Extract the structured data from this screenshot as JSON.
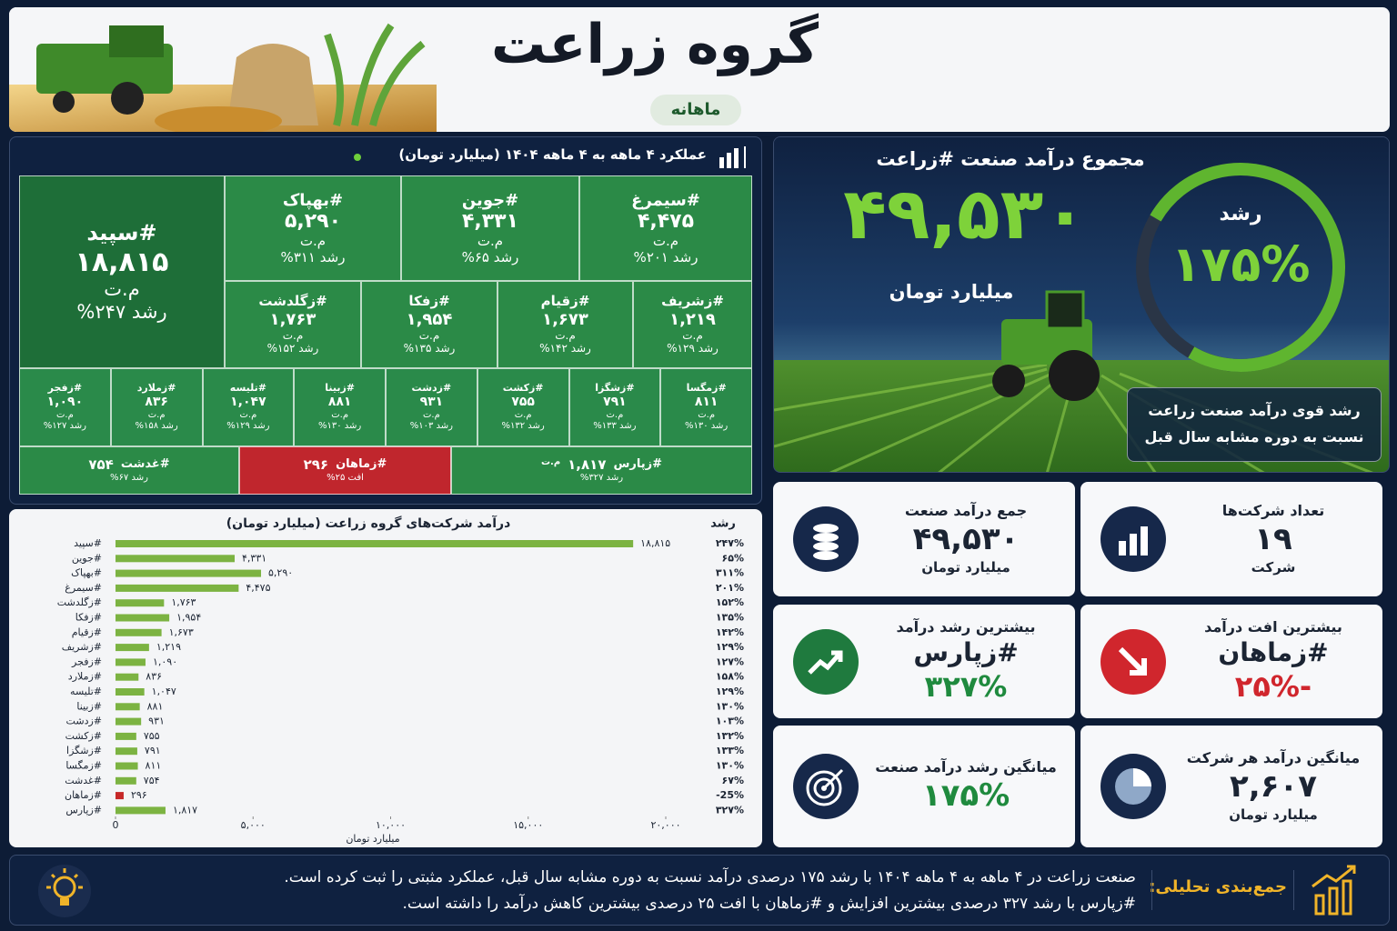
{
  "header": {
    "title": "گروه زراعت",
    "badge": "ماهانه"
  },
  "treemap": {
    "title": "عملکرد ۴ ماهه به ۴ ماهه ۱۴۰۴ (میلیارد تومان)",
    "tiles": [
      {
        "name": "#سپید",
        "value": "۱۸,۸۱۵",
        "unit": "م.ت",
        "growth": "رشد ۲۴۷%"
      },
      {
        "name": "#سیمرغ",
        "value": "۴,۴۷۵",
        "unit": "م.ت",
        "growth": "رشد ۲۰۱%"
      },
      {
        "name": "#جوین",
        "value": "۴,۳۳۱",
        "unit": "م.ت",
        "growth": "رشد ۶۵%"
      },
      {
        "name": "#بهپاک",
        "value": "۵,۲۹۰",
        "unit": "م.ت",
        "growth": "رشد ۳۱۱%"
      },
      {
        "name": "#زشریف",
        "value": "۱,۲۱۹",
        "unit": "م.ت",
        "growth": "رشد ۱۲۹%"
      },
      {
        "name": "#زقیام",
        "value": "۱,۶۷۳",
        "unit": "م.ت",
        "growth": "رشد ۱۴۲%"
      },
      {
        "name": "#زفکا",
        "value": "۱,۹۵۴",
        "unit": "م.ت",
        "growth": "رشد ۱۳۵%"
      },
      {
        "name": "#زگلدشت",
        "value": "۱,۷۶۳",
        "unit": "م.ت",
        "growth": "رشد ۱۵۲%"
      },
      {
        "name": "#زمگسا",
        "value": "۸۱۱",
        "unit": "م.ت",
        "growth": "رشد ۱۳۰%"
      },
      {
        "name": "#زشگزا",
        "value": "۷۹۱",
        "unit": "م.ت",
        "growth": "رشد ۱۳۳%"
      },
      {
        "name": "#زکشت",
        "value": "۷۵۵",
        "unit": "م.ت",
        "growth": "رشد ۱۳۲%"
      },
      {
        "name": "#زدشت",
        "value": "۹۳۱",
        "unit": "م.ت",
        "growth": "رشد ۱۰۳%"
      },
      {
        "name": "#زبینا",
        "value": "۸۸۱",
        "unit": "م.ت",
        "growth": "رشد ۱۳۰%"
      },
      {
        "name": "#تلیسه",
        "value": "۱,۰۴۷",
        "unit": "م.ت",
        "growth": "رشد ۱۲۹%"
      },
      {
        "name": "#زملارد",
        "value": "۸۳۶",
        "unit": "م.ت",
        "growth": "رشد ۱۵۸%"
      },
      {
        "name": "#زفجر",
        "value": "۱,۰۹۰",
        "unit": "م.ت",
        "growth": "رشد ۱۲۷%"
      },
      {
        "name": "#زپارس",
        "value": "۱,۸۱۷",
        "unit": "م.ت",
        "growth": "رشد ۳۲۷%"
      },
      {
        "name": "#زماهان",
        "value": "۲۹۶",
        "growth": "افت ۲۵%"
      },
      {
        "name": "#غدشت",
        "value": "۷۵۴",
        "growth": "رشد ۶۷%"
      }
    ]
  },
  "hero": {
    "title": "مجموع درآمد صنعت #زراعت",
    "value": "۴۹,۵۳۰",
    "unit": "میلیارد تومان",
    "ring_label": "رشد",
    "ring_value": "۱۷۵%",
    "caption": [
      "رشد قوی درآمد صنعت زراعت",
      "نسبت به دوره مشابه سال قبل"
    ]
  },
  "kpis": [
    {
      "title": "تعداد شرکت‌ها",
      "value": "۱۹",
      "unit": "شرکت"
    },
    {
      "title": "جمع درآمد صنعت",
      "value": "۴۹,۵۳۰",
      "unit": "میلیارد تومان"
    },
    {
      "title": "بیشترین افت درآمد",
      "value": "#زماهان",
      "unit": "-۲۵%"
    },
    {
      "title": "بیشترین رشد درآمد",
      "value": "#زپارس",
      "unit": "۳۲۷%"
    },
    {
      "title": "میانگین درآمد هر شرکت",
      "value": "۲,۶۰۷",
      "unit": "میلیارد تومان"
    },
    {
      "title": "میانگین رشد درآمد صنعت",
      "value": "۱۷۵%"
    }
  ],
  "chart_data": {
    "type": "bar",
    "orientation": "horizontal",
    "title": "درآمد شرکت‌های گروه زراعت (میلیارد تومان)",
    "xlabel": "میلیارد تومان",
    "growth_header": "رشد",
    "categories": [
      "#سپید",
      "#جوین",
      "#بهپاک",
      "#سیمرغ",
      "#زگلدشت",
      "#زفکا",
      "#زقیام",
      "#زشریف",
      "#زفجر",
      "#زملارد",
      "#تلیسه",
      "#زبینا",
      "#زدشت",
      "#زکشت",
      "#زشگزا",
      "#زمگسا",
      "#غدشت",
      "#زماهان",
      "#زپارس"
    ],
    "values": [
      18815,
      4331,
      5290,
      4475,
      1763,
      1954,
      1673,
      1219,
      1090,
      836,
      1047,
      881,
      931,
      755,
      791,
      811,
      754,
      296,
      1817
    ],
    "value_labels": [
      "۱۸,۸۱۵",
      "۴,۳۳۱",
      "۵,۲۹۰",
      "۴,۴۷۵",
      "۱,۷۶۳",
      "۱,۹۵۴",
      "۱,۶۷۳",
      "۱,۲۱۹",
      "۱,۰۹۰",
      "۸۳۶",
      "۱,۰۴۷",
      "۸۸۱",
      "۹۳۱",
      "۷۵۵",
      "۷۹۱",
      "۸۱۱",
      "۷۵۴",
      "۲۹۶",
      "۱,۸۱۷"
    ],
    "growth_labels": [
      "۲۴۷%",
      "۶۵%",
      "۳۱۱%",
      "۲۰۱%",
      "۱۵۲%",
      "۱۳۵%",
      "۱۴۲%",
      "۱۲۹%",
      "۱۲۷%",
      "۱۵۸%",
      "۱۲۹%",
      "۱۳۰%",
      "۱۰۳%",
      "۱۳۲%",
      "۱۳۳%",
      "۱۳۰%",
      "۶۷%",
      "-25%",
      "۳۲۷%"
    ],
    "colors": [
      "#7cb342",
      "#7cb342",
      "#7cb342",
      "#7cb342",
      "#7cb342",
      "#7cb342",
      "#7cb342",
      "#7cb342",
      "#7cb342",
      "#7cb342",
      "#7cb342",
      "#7cb342",
      "#7cb342",
      "#7cb342",
      "#7cb342",
      "#7cb342",
      "#7cb342",
      "#c62828",
      "#7cb342"
    ],
    "xlim": [
      0,
      20000
    ],
    "xticks": [
      0,
      {
        "value": 5000,
        "label": "۵,۰۰۰"
      },
      {
        "value": 10000,
        "label": "۱۰,۰۰۰"
      },
      {
        "value": 15000,
        "label": "۱۵,۰۰۰"
      },
      {
        "value": 20000,
        "label": "۲۰,۰۰۰"
      }
    ],
    "grid": false
  },
  "summary": {
    "label": "جمع‌بندی تحلیلی:",
    "lines": [
      "صنعت زراعت در ۴ ماهه به ۴ ماهه ۱۴۰۴ با رشد ۱۷۵ درصدی درآمد نسبت به دوره مشابه سال قبل، عملکرد مثبتی را ثبت کرده است.",
      "#زپارس با رشد ۳۲۷ درصدی بیشترین افزایش و #زماهان با افت ۲۵ درصدی بیشترین کاهش درآمد را داشته است."
    ]
  }
}
